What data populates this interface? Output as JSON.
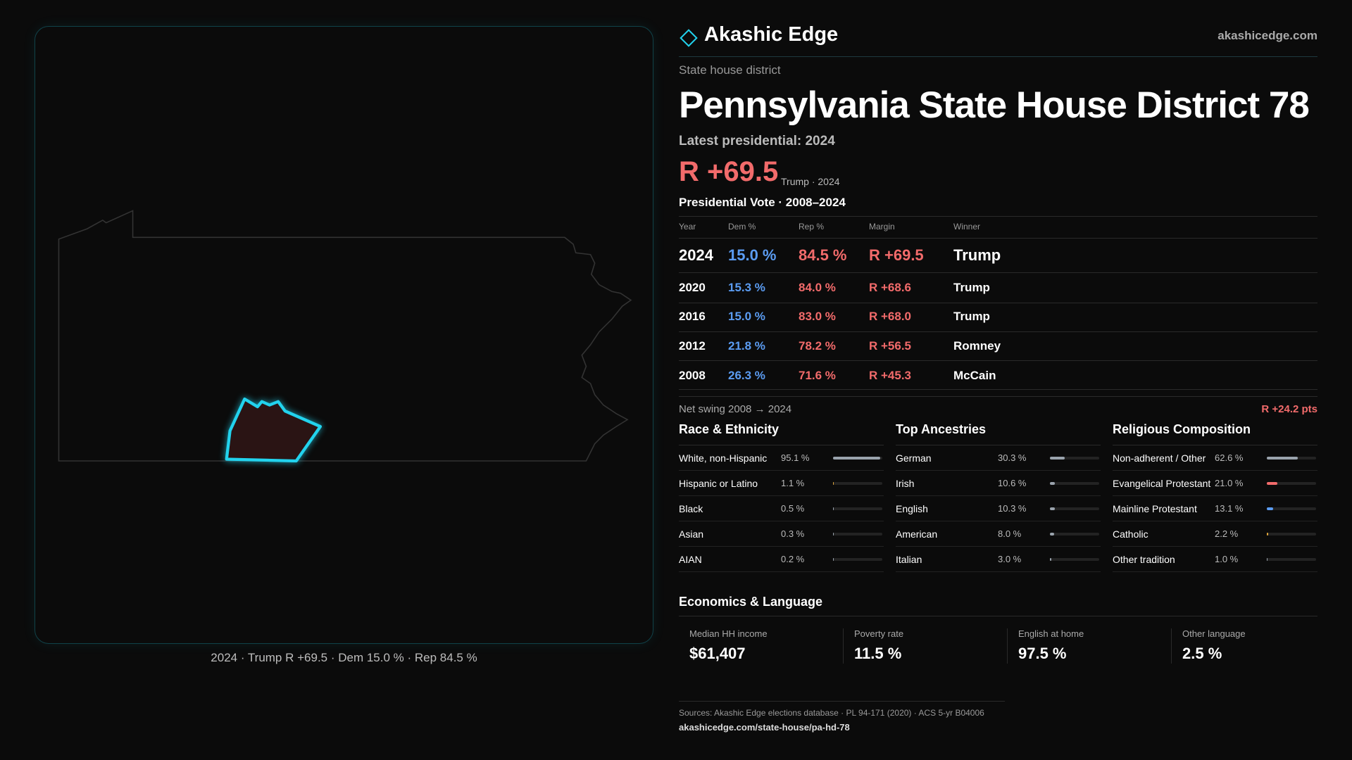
{
  "header": {
    "brand": "Akashic Edge",
    "site": "akashicedge.com"
  },
  "kicker": "State house district",
  "title": "Pennsylvania State House District 78",
  "latest_label": "Latest presidential: 2024",
  "margin": "R +69.5",
  "margin_note": "Trump · 2024",
  "table": {
    "title": "Presidential Vote · 2008–2024",
    "columns": [
      "Year",
      "Dem %",
      "Rep %",
      "Margin",
      "Winner"
    ],
    "rows": [
      [
        "2024",
        "15.0 %",
        "84.5 %",
        "R +69.5",
        "Trump"
      ],
      [
        "2020",
        "15.3 %",
        "84.0 %",
        "R +68.6",
        "Trump"
      ],
      [
        "2016",
        "15.0 %",
        "83.0 %",
        "R +68.0",
        "Trump"
      ],
      [
        "2012",
        "21.8 %",
        "78.2 %",
        "R +56.5",
        "Romney"
      ],
      [
        "2008",
        "26.3 %",
        "71.6 %",
        "R +45.3",
        "McCain"
      ]
    ]
  },
  "swing": {
    "label": "Net swing 2008 → 2024",
    "value": "R +24.2 pts"
  },
  "panels": [
    {
      "title": "Race & Ethnicity",
      "items": [
        {
          "label": "White, non-Hispanic",
          "value": 95.1,
          "value_label": "95.1 %",
          "color": "#9aa3ad"
        },
        {
          "label": "Hispanic or Latino",
          "value": 1.1,
          "value_label": "1.1 %",
          "color": "#e0a63a"
        },
        {
          "label": "Black",
          "value": 0.5,
          "value_label": "0.5 %",
          "color": "#9aa3ad"
        },
        {
          "label": "Asian",
          "value": 0.3,
          "value_label": "0.3 %",
          "color": "#9aa3ad"
        },
        {
          "label": "AIAN",
          "value": 0.2,
          "value_label": "0.2 %",
          "color": "#9aa3ad"
        }
      ]
    },
    {
      "title": "Top Ancestries",
      "items": [
        {
          "label": "German",
          "value": 30.3,
          "value_label": "30.3 %",
          "color": "#9aa3ad"
        },
        {
          "label": "Irish",
          "value": 10.6,
          "value_label": "10.6 %",
          "color": "#9aa3ad"
        },
        {
          "label": "English",
          "value": 10.3,
          "value_label": "10.3 %",
          "color": "#9aa3ad"
        },
        {
          "label": "American",
          "value": 8.0,
          "value_label": "8.0 %",
          "color": "#9aa3ad"
        },
        {
          "label": "Italian",
          "value": 3.0,
          "value_label": "3.0 %",
          "color": "#9aa3ad"
        }
      ]
    },
    {
      "title": "Religious Composition",
      "items": [
        {
          "label": "Non-adherent / Other",
          "value": 62.6,
          "value_label": "62.6 %",
          "color": "#9aa3ad"
        },
        {
          "label": "Evangelical Protestant",
          "value": 21.0,
          "value_label": "21.0 %",
          "color": "#f26b6b"
        },
        {
          "label": "Mainline Protestant",
          "value": 13.1,
          "value_label": "13.1 %",
          "color": "#5b9cf2"
        },
        {
          "label": "Catholic",
          "value": 2.2,
          "value_label": "2.2 %",
          "color": "#e0a63a"
        },
        {
          "label": "Other tradition",
          "value": 1.0,
          "value_label": "1.0 %",
          "color": "#9aa3ad"
        }
      ]
    }
  ],
  "economics": {
    "title": "Economics & Language",
    "items": [
      {
        "label": "Median HH income",
        "value": "$61,407"
      },
      {
        "label": "Poverty rate",
        "value": "11.5 %"
      },
      {
        "label": "English at home",
        "value": "97.5 %"
      },
      {
        "label": "Other language",
        "value": "2.5 %"
      }
    ]
  },
  "map_caption": "2024 · Trump R +69.5 · Dem 15.0 % · Rep 84.5 %",
  "footer": {
    "sources": "Sources: Akashic Edge elections database · PL 94-171 (2020) · ACS 5-yr B04006",
    "url": "akashicedge.com/state-house/pa-hd-78"
  }
}
